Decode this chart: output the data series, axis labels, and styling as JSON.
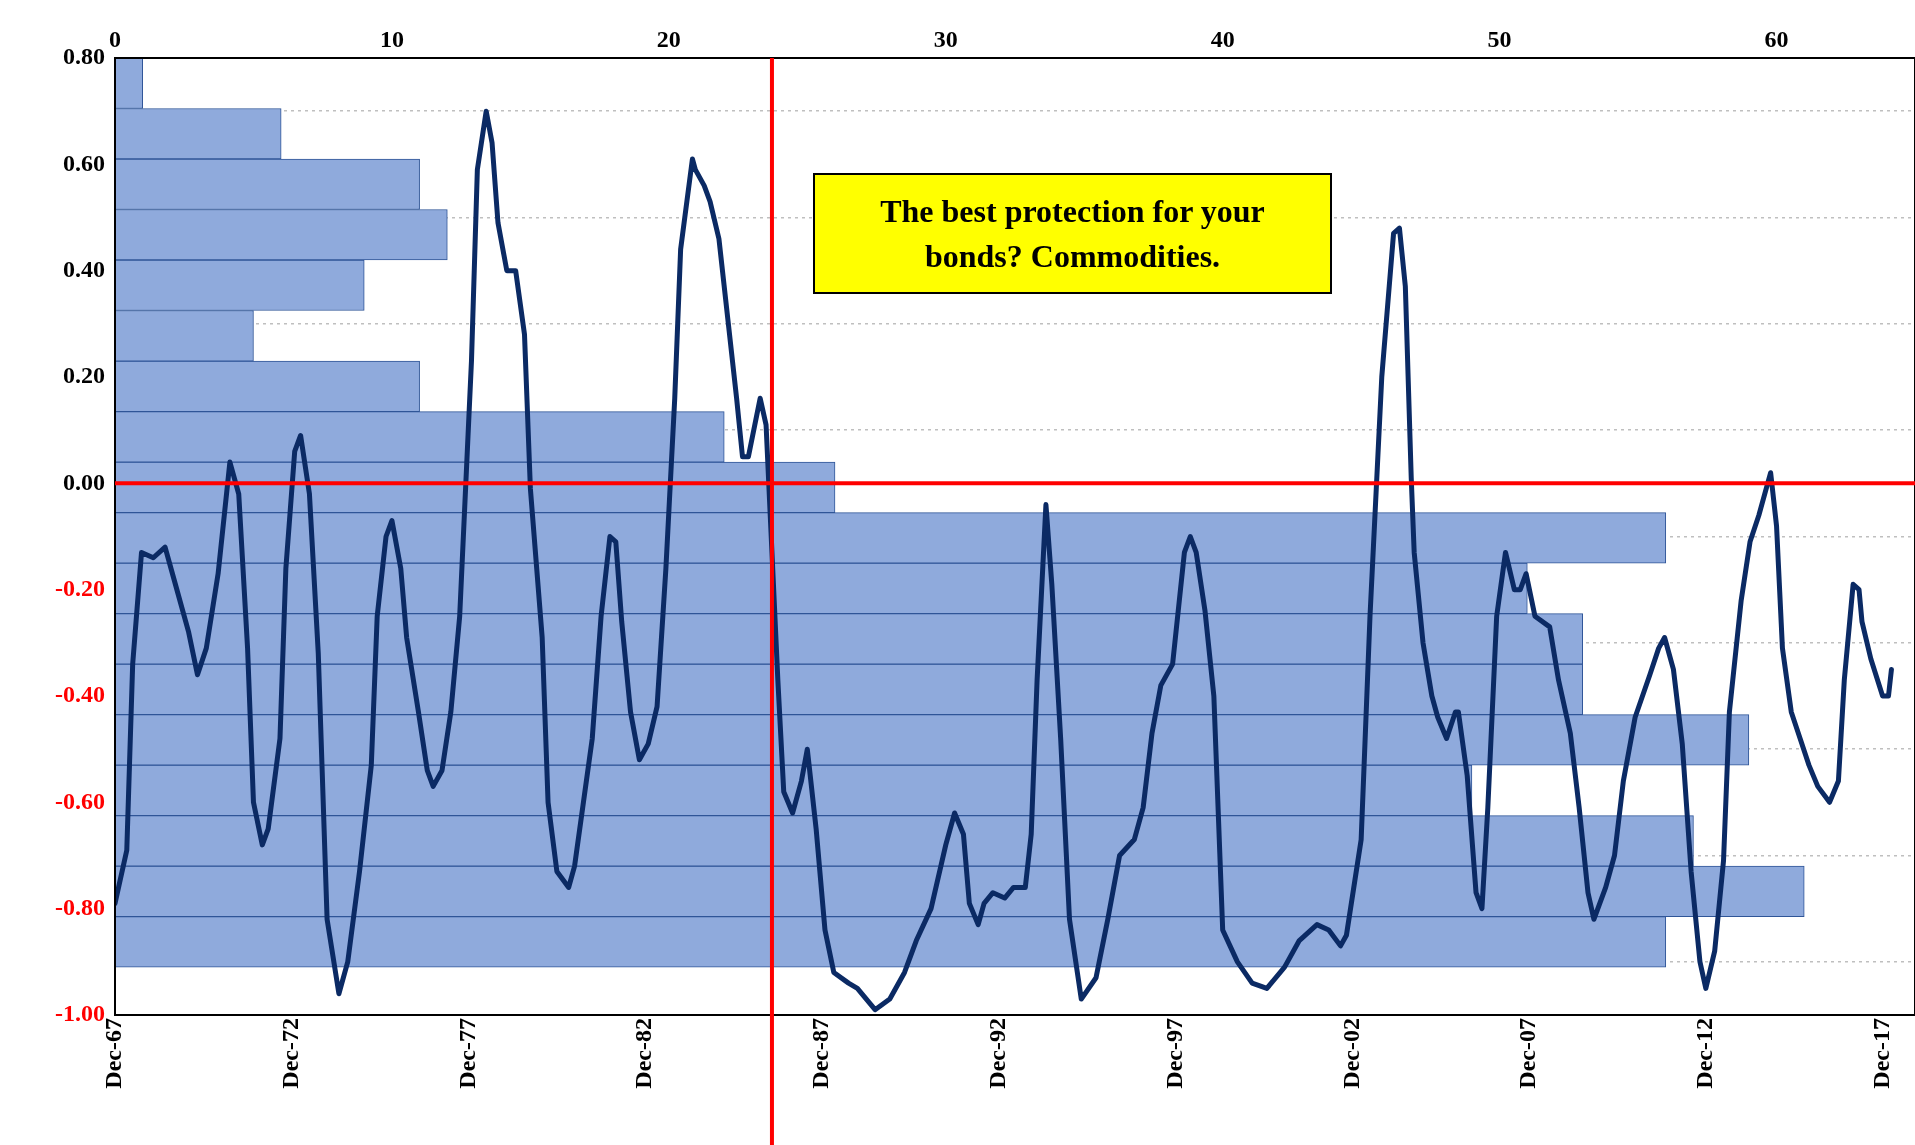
{
  "chart_data": [
    {
      "type": "histogram",
      "orientation": "horizontal",
      "color": "#8faadc",
      "bins": [
        -0.91,
        -0.815,
        -0.72,
        -0.625,
        -0.53,
        -0.435,
        -0.34,
        -0.245,
        -0.15,
        -0.055,
        0.04,
        0.135,
        0.23,
        0.325,
        0.42,
        0.515,
        0.61,
        0.705,
        0.8
      ],
      "values": [
        56,
        61,
        57,
        49,
        59,
        53,
        53,
        51,
        56,
        26,
        22,
        11,
        5,
        9,
        12,
        11,
        6,
        1
      ],
      "xlim": [
        0,
        65
      ],
      "xticks": [
        0,
        10,
        20,
        30,
        40,
        50,
        60
      ],
      "ylim": [
        -1,
        0.8
      ],
      "yticks": [
        {
          "value": 0.8,
          "label": "0.80"
        },
        {
          "value": 0.6,
          "label": "0.60"
        },
        {
          "value": 0.4,
          "label": "0.40"
        },
        {
          "value": 0.2,
          "label": "0.20"
        },
        {
          "value": 0,
          "label": "0.00"
        },
        {
          "value": -0.2,
          "label": "-0.20"
        },
        {
          "value": -0.4,
          "label": "-0.40"
        },
        {
          "value": -0.6,
          "label": "-0.60"
        },
        {
          "value": -0.8,
          "label": "-0.80"
        },
        {
          "value": -1,
          "label": "-1.00"
        }
      ],
      "grid": "y"
    },
    {
      "type": "line",
      "color": "#0b2a64",
      "tick_labels": "x",
      "annotations": [
        "The best protection for your bonds? Commodities."
      ],
      "ref_lines": [
        {
          "axis": "y",
          "value": 0,
          "color": "#ff0000"
        },
        {
          "axis": "x",
          "value": "1986-07",
          "color": "#ff0000"
        }
      ],
      "xlim": [
        "1967-12",
        "2018-11"
      ],
      "xticks": [
        {
          "value": "1967-12",
          "label": "Dec-67"
        },
        {
          "value": "1972-12",
          "label": "Dec-72"
        },
        {
          "value": "1977-12",
          "label": "Dec-77"
        },
        {
          "value": "1982-12",
          "label": "Dec-82"
        },
        {
          "value": "1987-12",
          "label": "Dec-87"
        },
        {
          "value": "1992-12",
          "label": "Dec-92"
        },
        {
          "value": "1997-12",
          "label": "Dec-97"
        },
        {
          "value": "2002-12",
          "label": "Dec-02"
        },
        {
          "value": "2007-12",
          "label": "Dec-07"
        },
        {
          "value": "2012-12",
          "label": "Dec-12"
        },
        {
          "value": "2017-12",
          "label": "Dec-17"
        }
      ],
      "ylim": [
        -1,
        0.8
      ],
      "x": [
        "1967-12",
        "1968-04",
        "1968-06",
        "1968-09",
        "1969-01",
        "1969-05",
        "1969-08",
        "1970-01",
        "1970-04",
        "1970-07",
        "1970-11",
        "1971-03",
        "1971-06",
        "1971-09",
        "1971-11",
        "1972-02",
        "1972-04",
        "1972-08",
        "1972-10",
        "1973-01",
        "1973-03",
        "1973-06",
        "1973-09",
        "1973-12",
        "1974-04",
        "1974-07",
        "1974-11",
        "1975-03",
        "1975-05",
        "1975-08",
        "1975-10",
        "1976-01",
        "1976-03",
        "1976-07",
        "1976-10",
        "1976-12",
        "1977-03",
        "1977-06",
        "1977-09",
        "1978-01",
        "1978-03",
        "1978-06",
        "1978-08",
        "1978-10",
        "1979-01",
        "1979-04",
        "1979-07",
        "1979-09",
        "1980-01",
        "1980-03",
        "1980-06",
        "1980-10",
        "1980-12",
        "1981-03",
        "1981-06",
        "1981-09",
        "1981-12",
        "1982-02",
        "1982-04",
        "1982-07",
        "1982-10",
        "1983-01",
        "1983-04",
        "1983-07",
        "1983-10",
        "1983-12",
        "1984-04",
        "1984-05",
        "1984-08",
        "1984-10",
        "1985-01",
        "1985-04",
        "1985-07",
        "1985-09",
        "1985-11",
        "1986-03",
        "1986-05",
        "1986-07",
        "1986-09",
        "1986-11",
        "1987-02",
        "1987-05",
        "1987-07",
        "1987-10",
        "1988-01",
        "1988-04",
        "1988-09",
        "1988-12",
        "1989-06",
        "1989-11",
        "1990-04",
        "1990-08",
        "1991-01",
        "1991-06",
        "1991-09",
        "1991-12",
        "1992-02",
        "1992-05",
        "1992-07",
        "1992-10",
        "1993-02",
        "1993-05",
        "1993-09",
        "1993-11",
        "1994-01",
        "1994-04",
        "1994-06",
        "1994-09",
        "1994-12",
        "1995-04",
        "1995-09",
        "1996-01",
        "1996-05",
        "1996-10",
        "1997-01",
        "1997-04",
        "1997-07",
        "1997-11",
        "1998-03",
        "1998-05",
        "1998-07",
        "1998-10",
        "1999-01",
        "1999-04",
        "1999-09",
        "2000-02",
        "2000-07",
        "2001-01",
        "2001-06",
        "2001-12",
        "2002-04",
        "2002-08",
        "2002-10",
        "2003-03",
        "2003-06",
        "2003-10",
        "2004-02",
        "2004-04",
        "2004-06",
        "2004-08",
        "2004-09",
        "2004-12",
        "2005-03",
        "2005-05",
        "2005-08",
        "2005-11",
        "2005-12",
        "2006-03",
        "2006-06",
        "2006-08",
        "2006-10",
        "2007-01",
        "2007-04",
        "2007-07",
        "2007-09",
        "2007-11",
        "2008-02",
        "2008-07",
        "2008-10",
        "2009-02",
        "2009-05",
        "2009-08",
        "2009-10",
        "2010-02",
        "2010-05",
        "2010-08",
        "2010-12",
        "2011-05",
        "2011-08",
        "2011-10",
        "2012-01",
        "2012-04",
        "2012-07",
        "2012-10",
        "2012-12",
        "2013-03",
        "2013-06",
        "2013-08",
        "2013-12",
        "2014-03",
        "2014-06",
        "2014-10",
        "2014-12",
        "2015-02",
        "2015-05",
        "2015-08",
        "2015-11",
        "2016-02",
        "2016-06",
        "2016-09",
        "2016-11",
        "2017-02",
        "2017-04",
        "2017-05",
        "2017-08",
        "2017-12",
        "2018-02",
        "2018-03"
      ],
      "values": [
        -0.79,
        -0.69,
        -0.34,
        -0.13,
        -0.14,
        -0.12,
        -0.18,
        -0.28,
        -0.36,
        -0.31,
        -0.17,
        0.04,
        -0.02,
        -0.31,
        -0.6,
        -0.68,
        -0.65,
        -0.48,
        -0.16,
        0.06,
        0.09,
        -0.02,
        -0.32,
        -0.82,
        -0.96,
        -0.9,
        -0.73,
        -0.53,
        -0.25,
        -0.1,
        -0.07,
        -0.16,
        -0.29,
        -0.43,
        -0.54,
        -0.57,
        -0.54,
        -0.43,
        -0.25,
        0.23,
        0.59,
        0.7,
        0.64,
        0.49,
        0.4,
        0.4,
        0.28,
        -0.01,
        -0.29,
        -0.6,
        -0.73,
        -0.76,
        -0.72,
        -0.6,
        -0.48,
        -0.25,
        -0.1,
        -0.11,
        -0.26,
        -0.43,
        -0.52,
        -0.49,
        -0.42,
        -0.16,
        0.16,
        0.44,
        0.61,
        0.59,
        0.56,
        0.53,
        0.46,
        0.31,
        0.16,
        0.05,
        0.05,
        0.16,
        0.11,
        -0.13,
        -0.37,
        -0.58,
        -0.62,
        -0.56,
        -0.5,
        -0.65,
        -0.84,
        -0.92,
        -0.94,
        -0.95,
        -0.99,
        -0.97,
        -0.92,
        -0.86,
        -0.8,
        -0.68,
        -0.62,
        -0.66,
        -0.79,
        -0.83,
        -0.79,
        -0.77,
        -0.78,
        -0.76,
        -0.76,
        -0.66,
        -0.37,
        -0.04,
        -0.19,
        -0.48,
        -0.82,
        -0.97,
        -0.93,
        -0.82,
        -0.7,
        -0.67,
        -0.61,
        -0.47,
        -0.38,
        -0.34,
        -0.13,
        -0.1,
        -0.13,
        -0.24,
        -0.4,
        -0.84,
        -0.9,
        -0.94,
        -0.95,
        -0.91,
        -0.86,
        -0.83,
        -0.84,
        -0.87,
        -0.85,
        -0.67,
        -0.25,
        0.2,
        0.47,
        0.48,
        0.37,
        0.01,
        -0.13,
        -0.3,
        -0.4,
        -0.44,
        -0.48,
        -0.43,
        -0.43,
        -0.55,
        -0.77,
        -0.8,
        -0.61,
        -0.25,
        -0.13,
        -0.2,
        -0.2,
        -0.17,
        -0.25,
        -0.27,
        -0.37,
        -0.47,
        -0.61,
        -0.77,
        -0.82,
        -0.76,
        -0.7,
        -0.56,
        -0.44,
        -0.36,
        -0.31,
        -0.29,
        -0.35,
        -0.49,
        -0.73,
        -0.9,
        -0.95,
        -0.88,
        -0.71,
        -0.43,
        -0.22,
        -0.11,
        -0.06,
        0.02,
        -0.08,
        -0.31,
        -0.43,
        -0.48,
        -0.53,
        -0.57,
        -0.6,
        -0.56,
        -0.37,
        -0.19,
        -0.2,
        -0.26,
        -0.33,
        -0.4,
        -0.4,
        -0.35
      ]
    }
  ]
}
